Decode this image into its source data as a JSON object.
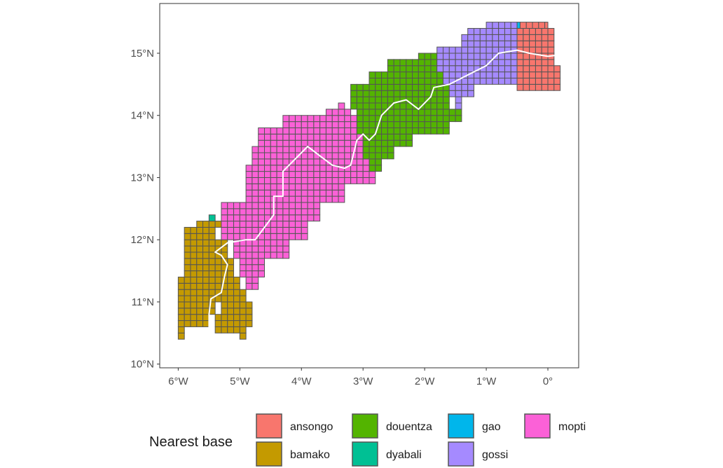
{
  "map": {
    "type": "map",
    "projection": "lon-lat",
    "xlim": [
      -6.3,
      0.5
    ],
    "ylim": [
      9.94,
      15.8
    ],
    "x_ticks": [
      {
        "value": -6,
        "label": "6°W"
      },
      {
        "value": -5,
        "label": "5°W"
      },
      {
        "value": -4,
        "label": "4°W"
      },
      {
        "value": -3,
        "label": "3°W"
      },
      {
        "value": -2,
        "label": "2°W"
      },
      {
        "value": -1,
        "label": "1°W"
      },
      {
        "value": 0,
        "label": "0°"
      }
    ],
    "y_ticks": [
      {
        "value": 10,
        "label": "10°N"
      },
      {
        "value": 11,
        "label": "11°N"
      },
      {
        "value": 12,
        "label": "12°N"
      },
      {
        "value": 13,
        "label": "13°N"
      },
      {
        "value": 14,
        "label": "14°N"
      },
      {
        "value": 15,
        "label": "15°N"
      }
    ],
    "grid": false,
    "cell_size_deg": 0.1,
    "colors": {
      "ansongo": "#F8766D",
      "bamako": "#C49A00",
      "douentza": "#53B400",
      "dyabali": "#00C094",
      "gao": "#00B6EB",
      "gossi": "#A58AFF",
      "mopti": "#FB61D7"
    },
    "cell_outline_color": "#555555",
    "river_color": "#ffffff",
    "regions": [
      {
        "name": "bamako",
        "rows": [
          {
            "lat": 10.4,
            "segs": [
              [
                -6.0,
                -5.9
              ],
              [
                -5.0,
                -4.9
              ]
            ]
          },
          {
            "lat": 10.5,
            "segs": [
              [
                -6.0,
                -5.9
              ],
              [
                -5.4,
                -4.9
              ]
            ]
          },
          {
            "lat": 10.6,
            "segs": [
              [
                -6.0,
                -5.5
              ],
              [
                -5.4,
                -4.8
              ]
            ]
          },
          {
            "lat": 10.8,
            "segs": [
              [
                -6.0,
                -5.4
              ],
              [
                -5.3,
                -4.8
              ]
            ]
          },
          {
            "lat": 11.0,
            "segs": [
              [
                -6.0,
                -4.9
              ]
            ]
          },
          {
            "lat": 11.2,
            "segs": [
              [
                -6.0,
                -5.0
              ]
            ]
          },
          {
            "lat": 11.4,
            "segs": [
              [
                -5.9,
                -5.1
              ]
            ]
          },
          {
            "lat": 11.7,
            "segs": [
              [
                -5.9,
                -5.2
              ]
            ]
          },
          {
            "lat": 12.0,
            "segs": [
              [
                -5.9,
                -5.4
              ]
            ]
          },
          {
            "lat": 12.2,
            "segs": [
              [
                -5.7,
                -5.3
              ]
            ]
          }
        ]
      },
      {
        "name": "dyabali",
        "rows": [
          {
            "lat": 12.3,
            "segs": [
              [
                -5.5,
                -5.4
              ]
            ]
          }
        ]
      },
      {
        "name": "mopti",
        "rows": [
          {
            "lat": 11.2,
            "segs": [
              [
                -4.9,
                -4.7
              ]
            ]
          },
          {
            "lat": 11.4,
            "segs": [
              [
                -5.0,
                -4.6
              ]
            ]
          },
          {
            "lat": 11.7,
            "segs": [
              [
                -5.1,
                -4.2
              ]
            ]
          },
          {
            "lat": 12.0,
            "segs": [
              [
                -5.3,
                -3.9
              ]
            ]
          },
          {
            "lat": 12.3,
            "segs": [
              [
                -5.3,
                -3.7
              ]
            ]
          },
          {
            "lat": 12.6,
            "segs": [
              [
                -4.9,
                -3.3
              ]
            ]
          },
          {
            "lat": 12.9,
            "segs": [
              [
                -4.9,
                -2.8
              ]
            ]
          },
          {
            "lat": 13.2,
            "segs": [
              [
                -4.8,
                -2.9
              ]
            ]
          },
          {
            "lat": 13.5,
            "segs": [
              [
                -4.7,
                -3.0
              ]
            ]
          },
          {
            "lat": 13.8,
            "segs": [
              [
                -4.3,
                -3.1
              ]
            ]
          },
          {
            "lat": 14.0,
            "segs": [
              [
                -3.6,
                -3.2
              ]
            ]
          },
          {
            "lat": 14.1,
            "segs": [
              [
                -3.4,
                -3.3
              ]
            ]
          }
        ]
      },
      {
        "name": "douentza",
        "rows": [
          {
            "lat": 13.1,
            "segs": [
              [
                -2.9,
                -2.7
              ]
            ]
          },
          {
            "lat": 13.3,
            "segs": [
              [
                -3.0,
                -2.5
              ]
            ]
          },
          {
            "lat": 13.5,
            "segs": [
              [
                -3.0,
                -2.2
              ]
            ]
          },
          {
            "lat": 13.7,
            "segs": [
              [
                -3.1,
                -1.6
              ]
            ]
          },
          {
            "lat": 13.9,
            "segs": [
              [
                -3.1,
                -1.4
              ]
            ]
          },
          {
            "lat": 14.1,
            "segs": [
              [
                -3.2,
                -1.6
              ]
            ]
          },
          {
            "lat": 14.3,
            "segs": [
              [
                -3.2,
                -1.6
              ]
            ]
          },
          {
            "lat": 14.5,
            "segs": [
              [
                -2.9,
                -1.7
              ]
            ]
          },
          {
            "lat": 14.7,
            "segs": [
              [
                -2.6,
                -1.8
              ]
            ]
          },
          {
            "lat": 14.9,
            "segs": [
              [
                -2.1,
                -1.8
              ]
            ]
          }
        ]
      },
      {
        "name": "gossi",
        "rows": [
          {
            "lat": 14.1,
            "segs": [
              [
                -1.5,
                -1.4
              ]
            ]
          },
          {
            "lat": 14.3,
            "segs": [
              [
                -1.6,
                -1.2
              ]
            ]
          },
          {
            "lat": 14.5,
            "segs": [
              [
                -1.7,
                -0.5
              ]
            ]
          },
          {
            "lat": 14.7,
            "segs": [
              [
                -1.8,
                -0.5
              ]
            ]
          },
          {
            "lat": 14.9,
            "segs": [
              [
                -1.8,
                -0.5
              ]
            ]
          },
          {
            "lat": 15.1,
            "segs": [
              [
                -1.4,
                -0.5
              ]
            ]
          },
          {
            "lat": 15.3,
            "segs": [
              [
                -1.3,
                -0.5
              ]
            ]
          },
          {
            "lat": 15.4,
            "segs": [
              [
                -1.0,
                -0.5
              ]
            ]
          }
        ]
      },
      {
        "name": "gao",
        "rows": [
          {
            "lat": 15.4,
            "segs": [
              [
                -0.5,
                -0.45
              ]
            ]
          }
        ]
      },
      {
        "name": "ansongo",
        "rows": [
          {
            "lat": 14.4,
            "segs": [
              [
                -0.5,
                0.2
              ]
            ]
          },
          {
            "lat": 14.6,
            "segs": [
              [
                -0.5,
                0.2
              ]
            ]
          },
          {
            "lat": 14.8,
            "segs": [
              [
                -0.5,
                0.1
              ]
            ]
          },
          {
            "lat": 15.0,
            "segs": [
              [
                -0.5,
                0.1
              ]
            ]
          },
          {
            "lat": 15.2,
            "segs": [
              [
                -0.5,
                0.1
              ]
            ]
          },
          {
            "lat": 15.4,
            "segs": [
              [
                -0.45,
                0.0
              ]
            ]
          }
        ]
      }
    ],
    "river": [
      [
        -5.5,
        10.5
      ],
      [
        -5.5,
        10.8
      ],
      [
        -5.47,
        11.05
      ],
      [
        -5.3,
        11.15
      ],
      [
        -5.25,
        11.4
      ],
      [
        -5.2,
        11.6
      ],
      [
        -5.3,
        11.75
      ],
      [
        -5.4,
        11.8
      ],
      [
        -5.2,
        11.95
      ],
      [
        -4.9,
        12.0
      ],
      [
        -4.75,
        12.0
      ],
      [
        -4.6,
        12.2
      ],
      [
        -4.45,
        12.4
      ],
      [
        -4.45,
        12.7
      ],
      [
        -4.3,
        12.7
      ],
      [
        -4.3,
        13.1
      ],
      [
        -4.2,
        13.2
      ],
      [
        -4.0,
        13.4
      ],
      [
        -3.9,
        13.5
      ],
      [
        -3.7,
        13.35
      ],
      [
        -3.5,
        13.2
      ],
      [
        -3.3,
        13.15
      ],
      [
        -3.2,
        13.2
      ],
      [
        -3.1,
        13.6
      ],
      [
        -3.0,
        13.7
      ],
      [
        -2.9,
        13.6
      ],
      [
        -2.8,
        13.7
      ],
      [
        -2.7,
        14.0
      ],
      [
        -2.5,
        14.2
      ],
      [
        -2.3,
        14.25
      ],
      [
        -2.1,
        14.1
      ],
      [
        -1.9,
        14.3
      ],
      [
        -1.85,
        14.45
      ],
      [
        -1.6,
        14.5
      ],
      [
        -1.3,
        14.65
      ],
      [
        -1.0,
        14.8
      ],
      [
        -0.8,
        15.0
      ],
      [
        -0.5,
        15.05
      ],
      [
        -0.3,
        15.0
      ],
      [
        0.0,
        14.95
      ],
      [
        0.15,
        14.97
      ]
    ]
  },
  "legend": {
    "title": "Nearest base",
    "items": [
      {
        "label": "ansongo",
        "key": "ansongo"
      },
      {
        "label": "bamako",
        "key": "bamako"
      },
      {
        "label": "douentza",
        "key": "douentza"
      },
      {
        "label": "dyabali",
        "key": "dyabali"
      },
      {
        "label": "gao",
        "key": "gao"
      },
      {
        "label": "gossi",
        "key": "gossi"
      },
      {
        "label": "mopti",
        "key": "mopti"
      }
    ]
  }
}
